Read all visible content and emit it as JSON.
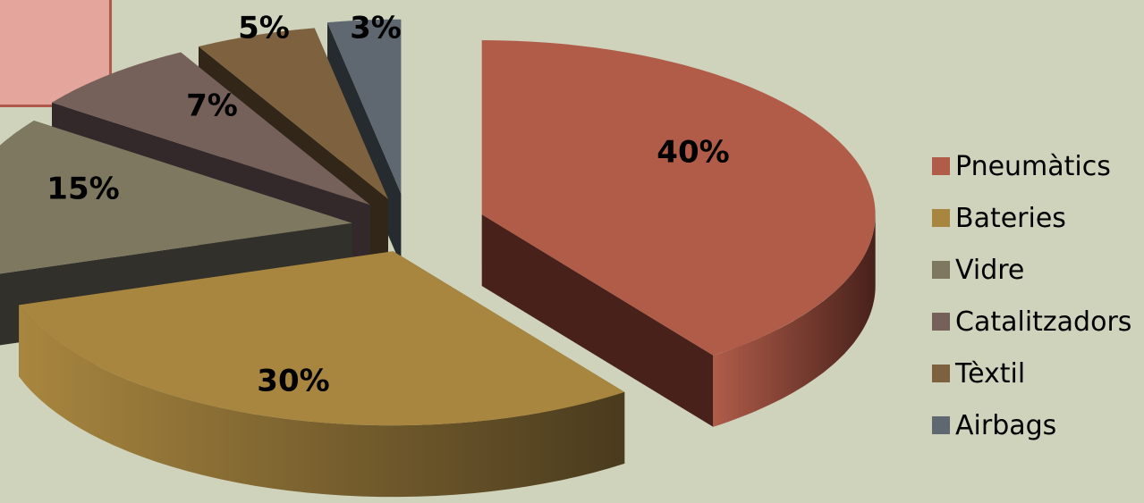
{
  "chart_data": {
    "type": "pie",
    "style": "3d-exploded",
    "categories": [
      "Pneumàtics",
      "Bateries",
      "Vidre",
      "Catalitzadors",
      "Tèxtil",
      "Airbags"
    ],
    "values": [
      40,
      30,
      15,
      7,
      5,
      3
    ],
    "labels": [
      "40%",
      "30%",
      "15%",
      "7%",
      "5%",
      "3%"
    ],
    "colors": [
      "#b05c49",
      "#a8863f",
      "#7e7860",
      "#76605a",
      "#7e6240",
      "#5f6870"
    ],
    "side_colors": [
      "#48211b",
      "#4a3b1e",
      "#32302a",
      "#33292a",
      "#322619",
      "#262b2f"
    ],
    "legend_position": "right",
    "title": ""
  },
  "decoration": {
    "callout_fill": "#e3a59c",
    "callout_border": "#b0584a",
    "background": "#cfd3bc"
  }
}
